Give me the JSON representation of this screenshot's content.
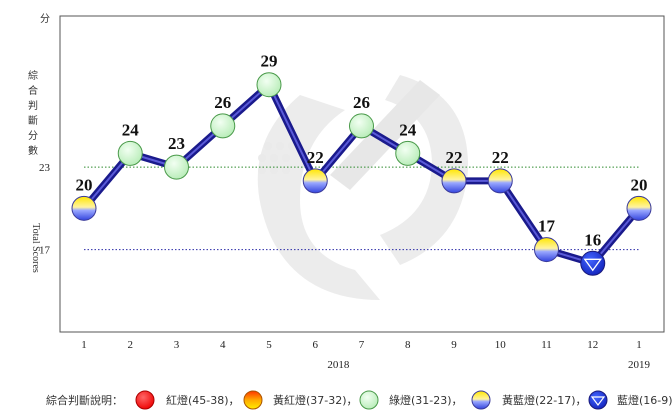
{
  "chart_data": {
    "type": "line",
    "title": "",
    "ylabel_zh": "綜合判斷分數",
    "ylabel_en": "Total Scores",
    "y_unit": "分",
    "y_ticks": [
      "23",
      "17"
    ],
    "ylim": [
      11,
      34
    ],
    "categories": [
      "1",
      "2",
      "3",
      "4",
      "5",
      "6",
      "7",
      "8",
      "9",
      "10",
      "11",
      "12",
      "1"
    ],
    "year_labels": [
      {
        "label": "2018",
        "index": 5.5
      },
      {
        "label": "2019",
        "index": 12
      }
    ],
    "values": [
      20,
      24,
      23,
      26,
      29,
      22,
      26,
      24,
      22,
      22,
      17,
      16,
      20
    ],
    "signals": [
      "yellow-blue",
      "green",
      "green",
      "green",
      "green",
      "yellow-blue",
      "green",
      "green",
      "yellow-blue",
      "yellow-blue",
      "yellow-blue",
      "blue",
      "yellow-blue"
    ],
    "reference_lines": [
      {
        "value": 23,
        "color": "#2e8b2e"
      },
      {
        "value": 17,
        "color": "#2a2aa8"
      }
    ],
    "series_color": "#1a1a8c",
    "grid": false
  },
  "legend": {
    "title": "綜合判斷說明：",
    "items": [
      {
        "key": "red",
        "label": "紅燈(45-38)"
      },
      {
        "key": "yellow-red",
        "label": "黃紅燈(37-32)"
      },
      {
        "key": "green",
        "label": "綠燈(31-23)"
      },
      {
        "key": "yellow-blue",
        "label": "黃藍燈(22-17)"
      },
      {
        "key": "blue",
        "label": "藍燈(16-9)"
      }
    ],
    "separator": "，"
  }
}
